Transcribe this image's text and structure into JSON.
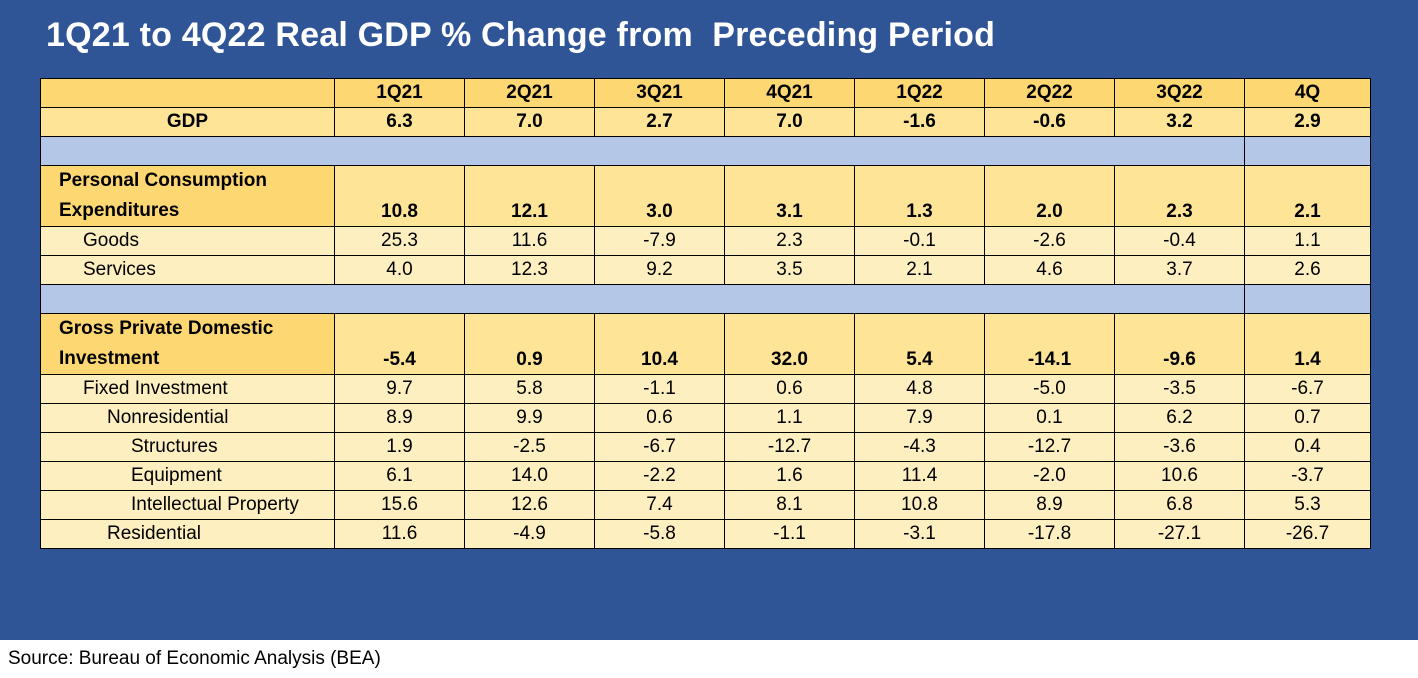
{
  "title": "1Q21 to 4Q22 Real GDP % Change from  Preceding Period",
  "source": "Source: Bureau of Economic Analysis (BEA)",
  "colors": {
    "frame": "#2f5597",
    "header_fill": "#fdd771",
    "row_fill": "#fdefc0",
    "spacer_fill": "#b4c7e7"
  },
  "chart_data": {
    "type": "table",
    "title": "1Q21 to 4Q22 Real GDP % Change from  Preceding Period",
    "columns": [
      "1Q21",
      "2Q21",
      "3Q21",
      "4Q21",
      "1Q22",
      "2Q22",
      "3Q22",
      "4Q"
    ],
    "rows": [
      {
        "label": "GDP",
        "values": [
          "6.3",
          "7.0",
          "2.7",
          "7.0",
          "-1.6",
          "-0.6",
          "3.2",
          "2.9"
        ]
      },
      {
        "label_line1": "Personal Consumption",
        "label_line2": "Expenditures",
        "values": [
          "10.8",
          "12.1",
          "3.0",
          "3.1",
          "1.3",
          "2.0",
          "2.3",
          "2.1"
        ]
      },
      {
        "label": "Goods",
        "values": [
          "25.3",
          "11.6",
          "-7.9",
          "2.3",
          "-0.1",
          "-2.6",
          "-0.4",
          "1.1"
        ]
      },
      {
        "label": "Services",
        "values": [
          "4.0",
          "12.3",
          "9.2",
          "3.5",
          "2.1",
          "4.6",
          "3.7",
          "2.6"
        ]
      },
      {
        "label_line1": "Gross Private Domestic",
        "label_line2": "Investment",
        "values": [
          "-5.4",
          "0.9",
          "10.4",
          "32.0",
          "5.4",
          "-14.1",
          "-9.6",
          "1.4"
        ]
      },
      {
        "label": "Fixed Investment",
        "values": [
          "9.7",
          "5.8",
          "-1.1",
          "0.6",
          "4.8",
          "-5.0",
          "-3.5",
          "-6.7"
        ]
      },
      {
        "label": "Nonresidential",
        "values": [
          "8.9",
          "9.9",
          "0.6",
          "1.1",
          "7.9",
          "0.1",
          "6.2",
          "0.7"
        ]
      },
      {
        "label": "Structures",
        "values": [
          "1.9",
          "-2.5",
          "-6.7",
          "-12.7",
          "-4.3",
          "-12.7",
          "-3.6",
          "0.4"
        ]
      },
      {
        "label": "Equipment",
        "values": [
          "6.1",
          "14.0",
          "-2.2",
          "1.6",
          "11.4",
          "-2.0",
          "10.6",
          "-3.7"
        ]
      },
      {
        "label": "Intellectual Property",
        "values": [
          "15.6",
          "12.6",
          "7.4",
          "8.1",
          "10.8",
          "8.9",
          "6.8",
          "5.3"
        ]
      },
      {
        "label": "Residential",
        "values": [
          "11.6",
          "-4.9",
          "-5.8",
          "-1.1",
          "-3.1",
          "-17.8",
          "-27.1",
          "-26.7"
        ]
      }
    ]
  }
}
